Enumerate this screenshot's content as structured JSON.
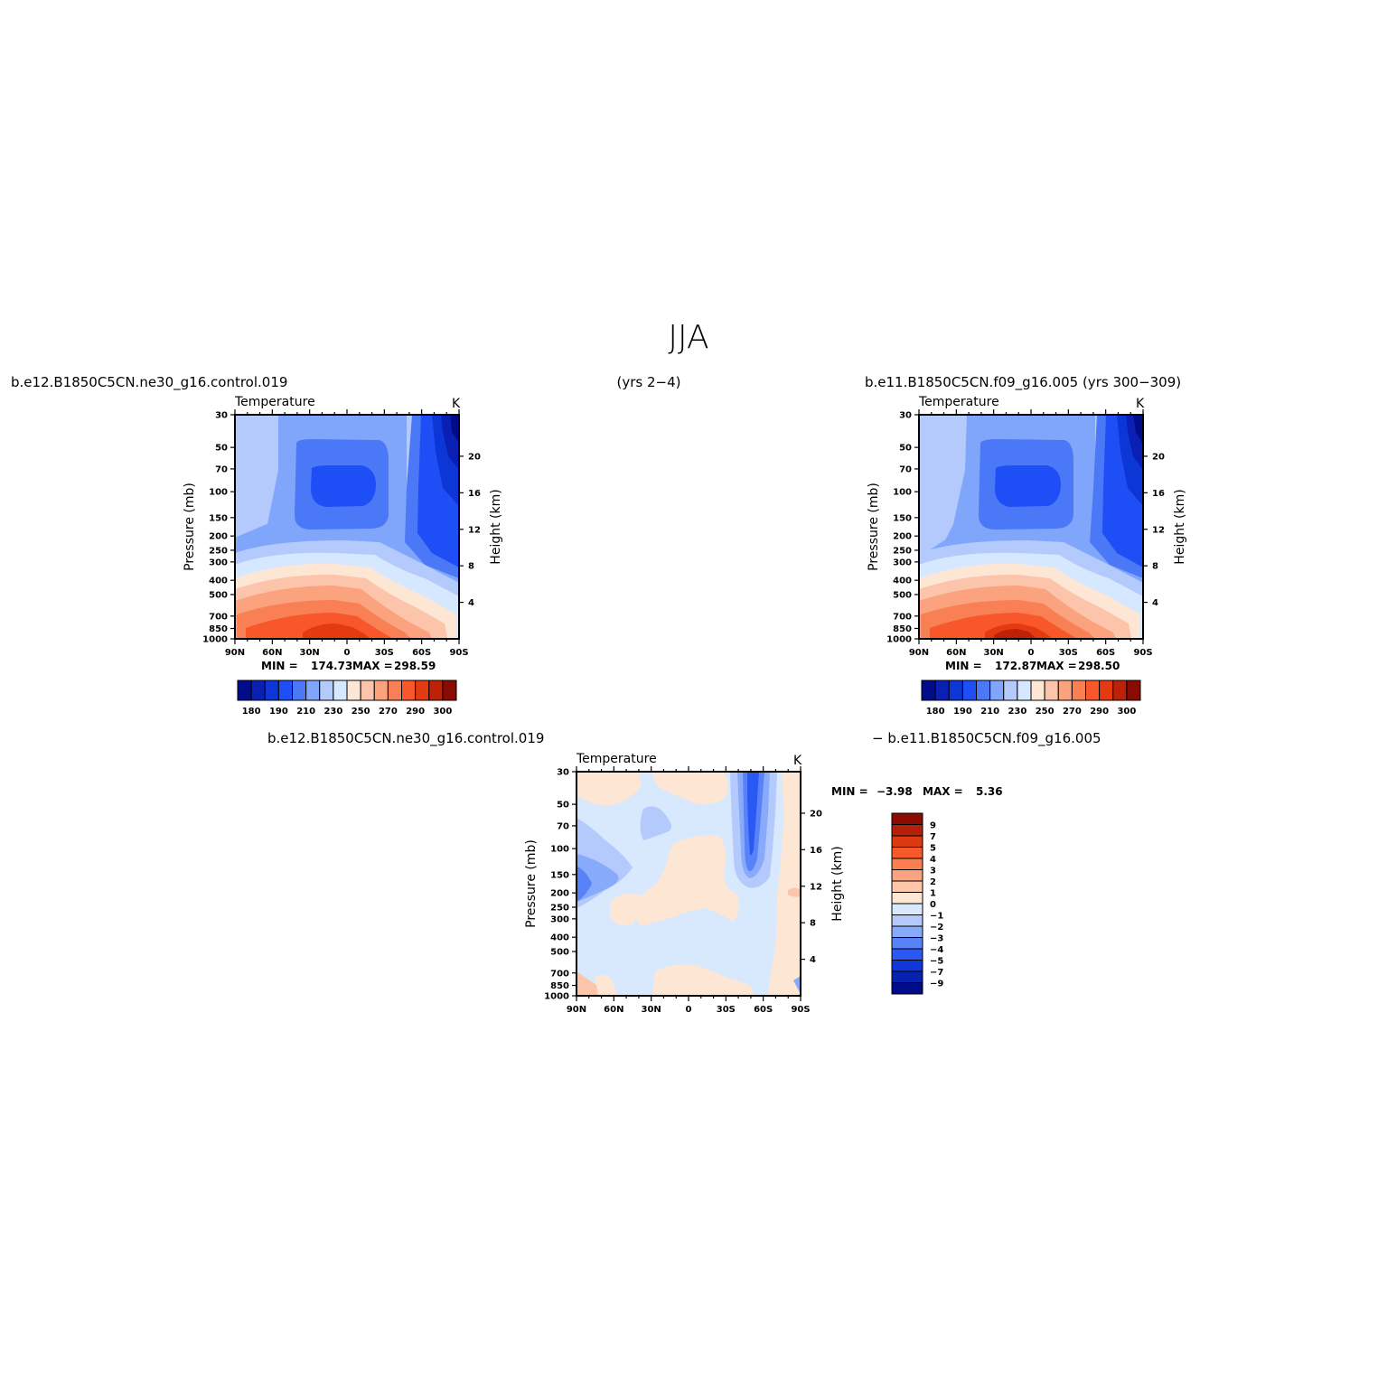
{
  "figure": {
    "title": "JJA",
    "top_left_header": "b.e12.B1850C5CN.ne30_g16.control.019",
    "top_center_header": "(yrs 2−4)",
    "top_right_header": "b.e11.B1850C5CN.f09_g16.005 (yrs 300−309)",
    "bottom_left_header": "b.e12.B1850C5CN.ne30_g16.control.019",
    "bottom_right_header": "− b.e11.B1850C5CN.f09_g16.005"
  },
  "axes": {
    "pressure_label": "Pressure (mb)",
    "height_label": "Height (km)",
    "pressure_ticks": [
      30,
      50,
      70,
      100,
      150,
      200,
      250,
      300,
      400,
      500,
      700,
      850,
      1000
    ],
    "height_ticks": [
      4,
      8,
      12,
      16,
      20
    ],
    "lat_ticks": [
      "90N",
      "60N",
      "30N",
      "0",
      "30S",
      "60S",
      "90S"
    ]
  },
  "chart_data": [
    {
      "type": "heatmap",
      "panel": "top-left",
      "title": "Temperature",
      "units": "K",
      "min_label": "MIN =",
      "min_value": "174.73",
      "max_label": "MAX =",
      "max_value": "298.59",
      "ylim_pressure": [
        1000,
        30
      ],
      "colorbar_labels": [
        "180",
        "190",
        "210",
        "230",
        "250",
        "270",
        "290",
        "300"
      ]
    },
    {
      "type": "heatmap",
      "panel": "top-right",
      "title": "Temperature",
      "units": "K",
      "min_label": "MIN =",
      "min_value": "172.87",
      "max_label": "MAX =",
      "max_value": "298.50",
      "ylim_pressure": [
        1000,
        30
      ],
      "colorbar_labels": [
        "180",
        "190",
        "210",
        "230",
        "250",
        "270",
        "290",
        "300"
      ]
    },
    {
      "type": "heatmap",
      "panel": "bottom-difference",
      "title": "Temperature",
      "units": "K",
      "min_label": "MIN =",
      "min_value": "−3.98",
      "max_label": "MAX =",
      "max_value": "5.36",
      "ylim_pressure": [
        1000,
        30
      ],
      "colorbar_labels": [
        "9",
        "7",
        "5",
        "4",
        "3",
        "2",
        "1",
        "0",
        "−1",
        "−2",
        "−3",
        "−4",
        "−5",
        "−7",
        "−9"
      ]
    }
  ],
  "palettes": {
    "absolute": [
      "#000c8a",
      "#0a20b4",
      "#0c36d6",
      "#1e4ef5",
      "#4a78f7",
      "#80a6fb",
      "#b4cafd",
      "#d6e8ff",
      "#fde6d4",
      "#fcc4aa",
      "#fba27e",
      "#f98054",
      "#f7572a",
      "#e33a12",
      "#bd2208",
      "#8a0a04"
    ],
    "difference": [
      "#8a0a04",
      "#b5200a",
      "#db3a10",
      "#f75a2a",
      "#fa7e50",
      "#fba27e",
      "#fcc6aa",
      "#fee6d4",
      "#d8e8fd",
      "#b4cafd",
      "#88aafb",
      "#5a82f8",
      "#2a58f4",
      "#1038d8",
      "#0822b0",
      "#000c8a"
    ]
  }
}
